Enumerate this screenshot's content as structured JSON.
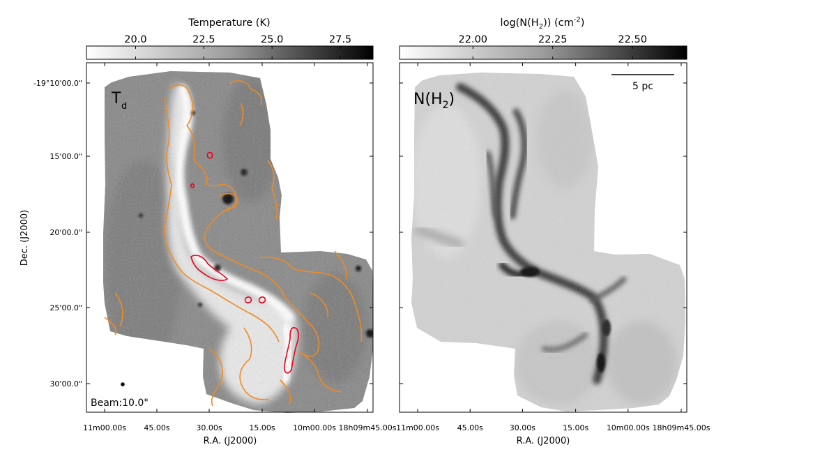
{
  "chart_data": [
    {
      "type": "heatmap",
      "panel_label": "T",
      "panel_label_sub": "d",
      "colorbar": {
        "label": "Temperature (K)",
        "ticks": [
          "20.0",
          "22.5",
          "25.0",
          "27.5"
        ],
        "tick_values": [
          20.0,
          22.5,
          25.0,
          27.5
        ],
        "range": [
          18.2,
          28.7
        ],
        "colormap": "gray_r"
      },
      "contour_colors": [
        "#f08a24",
        "#e8001c"
      ],
      "beam_label": "Beam:10.0\"",
      "ylabel": "Dec. (J2000)",
      "xlabel": "R.A. (J2000)",
      "y_ticks": [
        "-19°10'00.0\"",
        "15'00.0\"",
        "20'00.0\"",
        "25'00.0\"",
        "30'00.0\""
      ],
      "x_ticks": [
        "11m00.00s",
        "45.00s",
        "30.00s",
        "15.00s",
        "10m00.00s",
        "18h09m45.00s"
      ]
    },
    {
      "type": "heatmap",
      "panel_label": "N(H",
      "panel_label_sub": "2",
      "panel_label_tail": ")",
      "colorbar": {
        "label": "log(N(H",
        "label_sub": "2",
        "label_mid": ")) (cm",
        "label_sup": "-2",
        "label_tail": ")",
        "ticks": [
          "22.00",
          "22.25",
          "22.50"
        ],
        "tick_values": [
          22.0,
          22.25,
          22.5
        ],
        "range": [
          21.77,
          22.67
        ],
        "colormap": "gray_r"
      },
      "scale_bar_label": "5 pc",
      "xlabel": "R.A. (J2000)",
      "x_ticks": [
        "11m00.00s",
        "45.00s",
        "30.00s",
        "15.00s",
        "10m00.00s",
        "18h09m45.00s"
      ]
    }
  ]
}
